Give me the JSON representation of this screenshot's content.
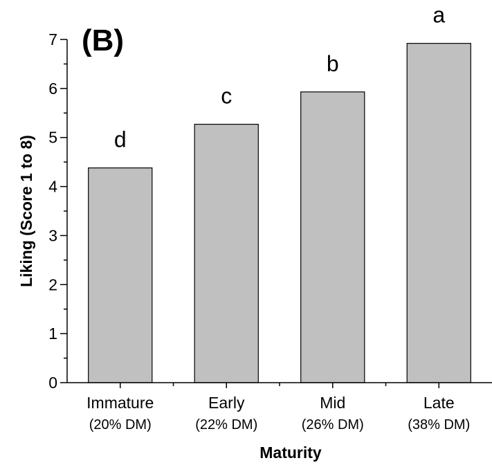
{
  "chart_data": {
    "type": "bar",
    "panel_label": "(B)",
    "xlabel": "Maturity",
    "ylabel": "Liking (Score 1 to 8)",
    "ylim": [
      0,
      7
    ],
    "yticks": [
      "0",
      "1",
      "2",
      "3",
      "4",
      "5",
      "6",
      "7"
    ],
    "categories": [
      {
        "name": "Immature",
        "sub": "(20% DM)"
      },
      {
        "name": "Early",
        "sub": "(22% DM)"
      },
      {
        "name": "Mid",
        "sub": "(26% DM)"
      },
      {
        "name": "Late",
        "sub": "(38% DM)"
      }
    ],
    "values": [
      4.38,
      5.27,
      5.93,
      6.92
    ],
    "significance_letters": [
      "d",
      "c",
      "b",
      "a"
    ],
    "bar_color": "#c0c0c0",
    "grid": false
  }
}
